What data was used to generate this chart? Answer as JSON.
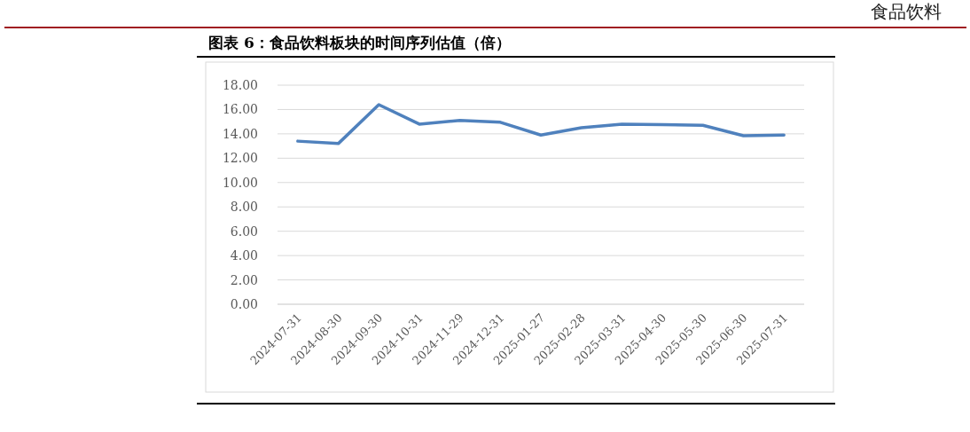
{
  "chart_data": {
    "type": "line",
    "title": "图表 6：食品饮料板块的时间序列估值（倍）",
    "annotations": [
      "食品饮料"
    ],
    "categories": [
      "2024-07-31",
      "2024-08-30",
      "2024-09-30",
      "2024-10-31",
      "2024-11-29",
      "2024-12-31",
      "2025-01-27",
      "2025-02-28",
      "2025-03-31",
      "2025-04-30",
      "2025-05-30",
      "2025-06-30",
      "2025-07-31"
    ],
    "series": [
      {
        "color": "#4f81bd",
        "values": [
          13.4,
          13.2,
          16.4,
          14.8,
          15.1,
          14.95,
          13.9,
          14.5,
          14.8,
          14.75,
          14.7,
          13.85,
          13.9
        ]
      }
    ],
    "ylim": [
      0,
      18
    ],
    "yticks": [
      {
        "value": 0,
        "label": "0.00"
      },
      {
        "value": 2,
        "label": "2.00"
      },
      {
        "value": 4,
        "label": "4.00"
      },
      {
        "value": 6,
        "label": "6.00"
      },
      {
        "value": 8,
        "label": "8.00"
      },
      {
        "value": 10,
        "label": "10.00"
      },
      {
        "value": 12,
        "label": "12.00"
      },
      {
        "value": 14,
        "label": "14.00"
      },
      {
        "value": 16,
        "label": "16.00"
      },
      {
        "value": 18,
        "label": "18.00"
      }
    ],
    "grid": "y",
    "marker": "none",
    "line_style": "solid"
  }
}
